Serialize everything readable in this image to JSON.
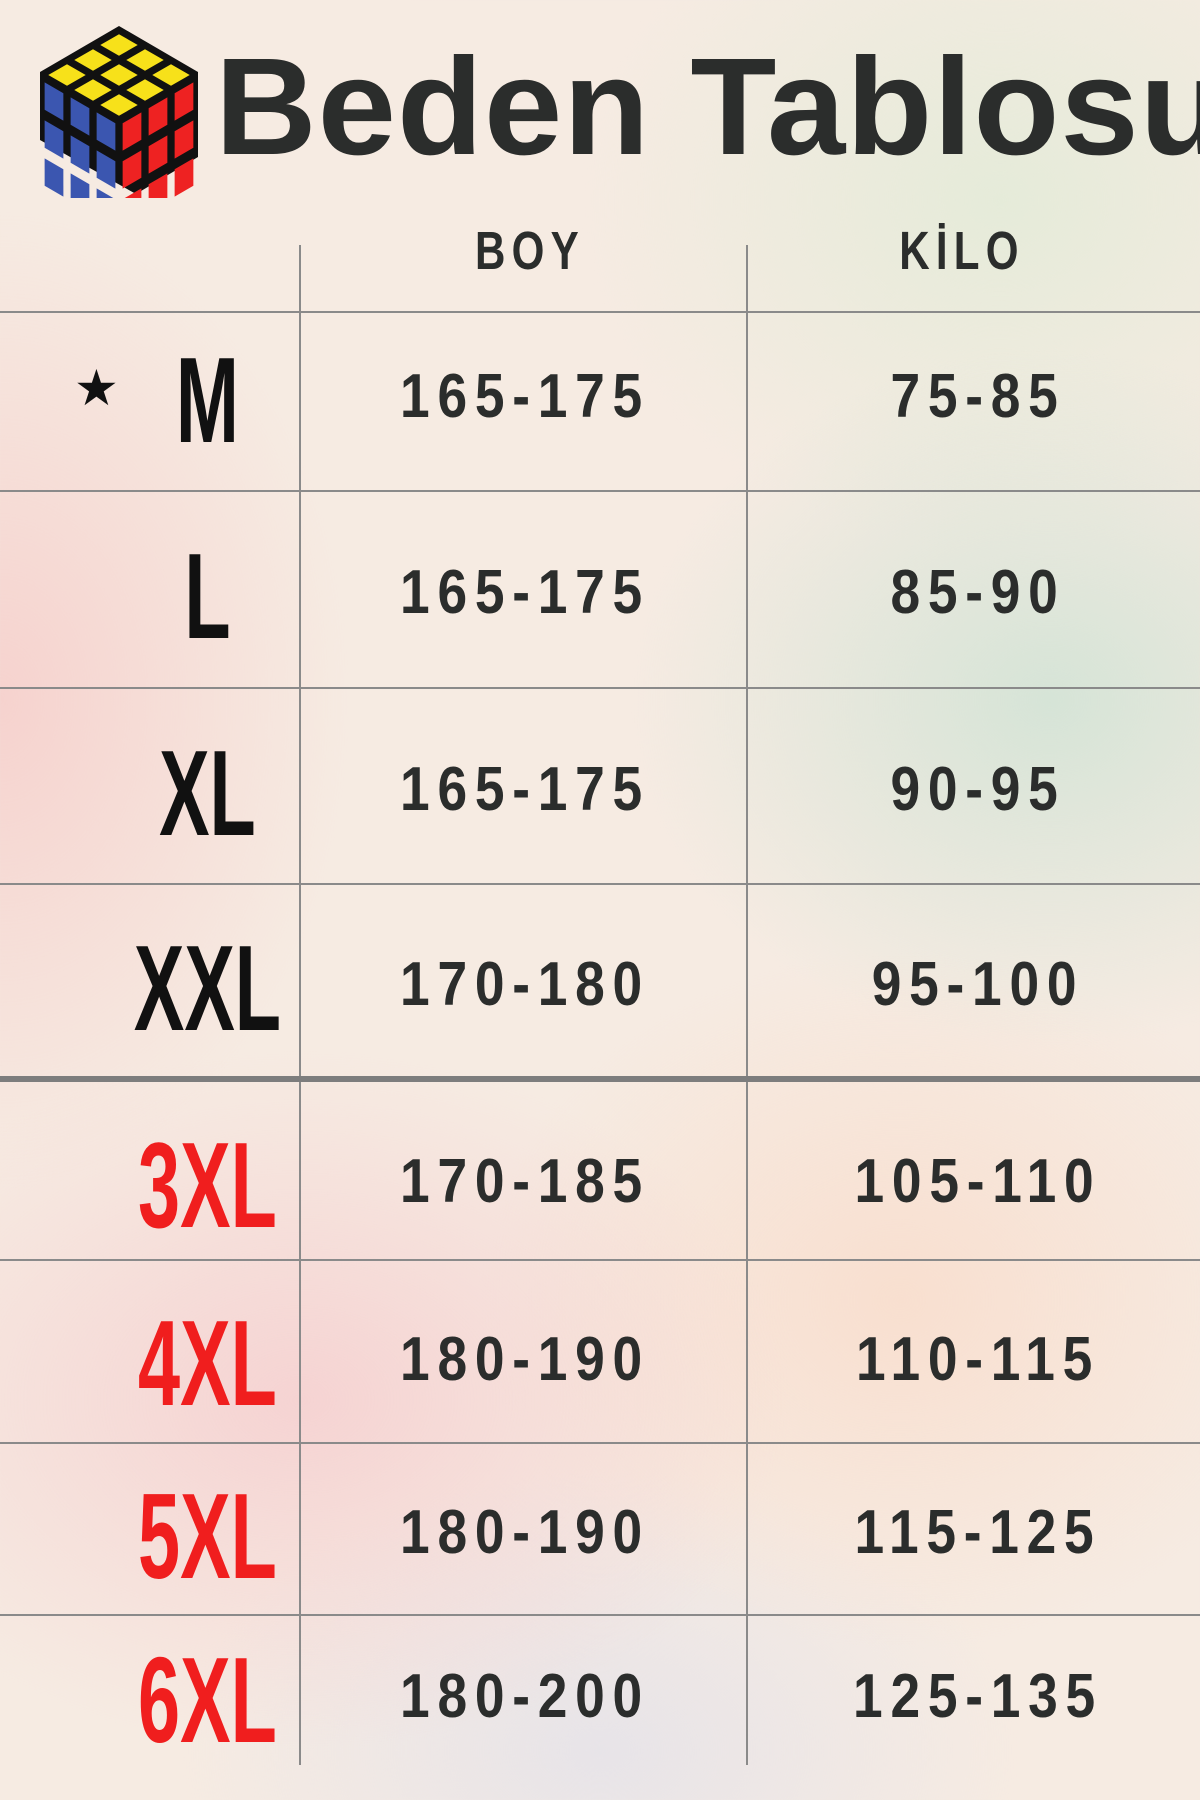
{
  "title": "Beden Tablosu",
  "logo": "rubiks-cube-logo",
  "headers": {
    "boy": "BOY",
    "kilo": "KİLO"
  },
  "colors": {
    "text": "#2b2d2c",
    "highlight": "#f01e1e",
    "cube_yellow": "#f7e11a",
    "cube_blue": "#3b56b0",
    "cube_red": "#ee2222"
  },
  "rows": [
    {
      "size": "M",
      "boy": "165-175",
      "kilo": "75-85",
      "marked": true,
      "star": "★"
    },
    {
      "size": "L",
      "boy": "165-175",
      "kilo": "85-90"
    },
    {
      "size": "XL",
      "boy": "165-175",
      "kilo": "90-95"
    },
    {
      "size": "XXL",
      "boy": "170-180",
      "kilo": "95-100"
    },
    {
      "size": "3XL",
      "boy": "170-185",
      "kilo": "105-110",
      "highlight": true
    },
    {
      "size": "4XL",
      "boy": "180-190",
      "kilo": "110-115",
      "highlight": true
    },
    {
      "size": "5XL",
      "boy": "180-190",
      "kilo": "115-125",
      "highlight": true
    },
    {
      "size": "6XL",
      "boy": "180-200",
      "kilo": "125-135",
      "highlight": true
    }
  ]
}
